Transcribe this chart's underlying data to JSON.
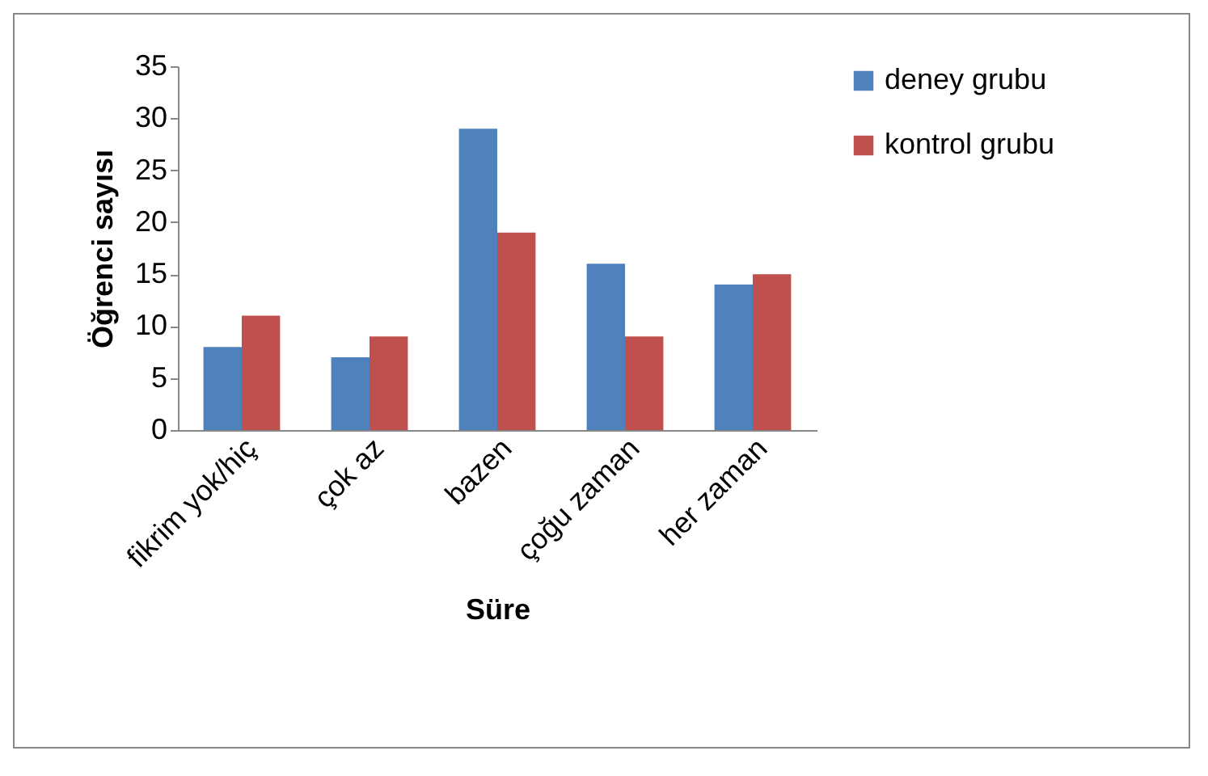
{
  "chart_data": {
    "type": "bar",
    "xlabel": "Süre",
    "ylabel": "Öğrenci sayısı",
    "categories": [
      "fikrim yok/hiç",
      "çok az",
      "bazen",
      "çoğu zaman",
      "her zaman"
    ],
    "series": [
      {
        "name": "deney grubu",
        "color": "#4f81bd",
        "values": [
          8,
          7,
          29,
          16,
          14
        ]
      },
      {
        "name": "kontrol grubu",
        "color": "#c0504d",
        "values": [
          11,
          9,
          19,
          9,
          15
        ]
      }
    ],
    "ylim": [
      0,
      35
    ],
    "yticks": [
      0,
      5,
      10,
      15,
      20,
      25,
      30,
      35
    ],
    "grid": false,
    "legend": "right"
  }
}
